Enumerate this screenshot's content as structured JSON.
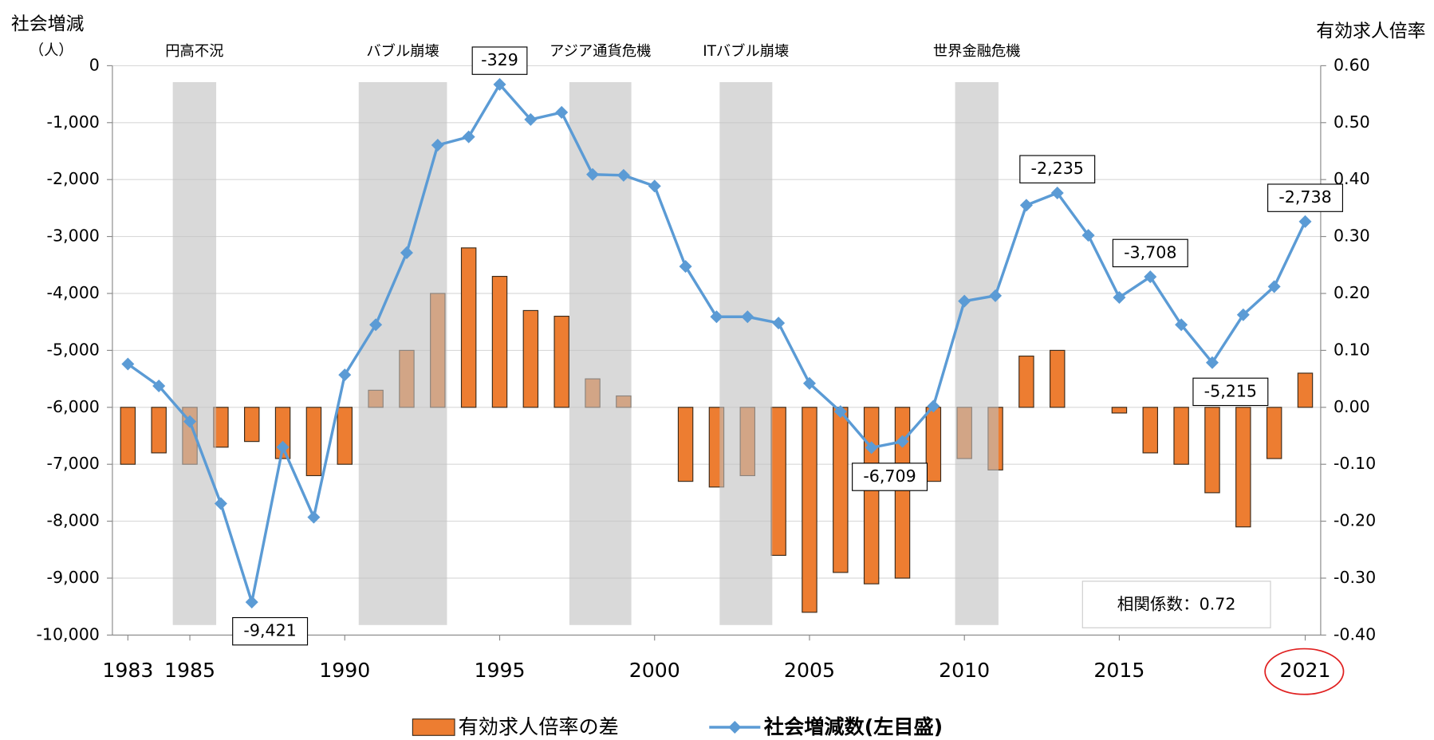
{
  "chart_data": {
    "type": "combo",
    "y_label": "社会増減",
    "y_unit": "（人）",
    "y2_label": "有効求人倍率",
    "x": [
      1983,
      1984,
      1985,
      1986,
      1987,
      1988,
      1989,
      1990,
      1991,
      1992,
      1993,
      1994,
      1995,
      1996,
      1997,
      1998,
      1999,
      2000,
      2001,
      2002,
      2003,
      2004,
      2005,
      2006,
      2007,
      2008,
      2009,
      2010,
      2011,
      2012,
      2013,
      2014,
      2015,
      2016,
      2017,
      2018,
      2019,
      2020,
      2021
    ],
    "xlim": [
      1982.5,
      2021.5
    ],
    "xticks": [
      1983,
      1985,
      1990,
      1995,
      2000,
      2005,
      2010,
      2015,
      2021
    ],
    "ylim": [
      -10000,
      0
    ],
    "yticks": [
      0,
      {
        "value": -1000,
        "label": "-1,000"
      },
      {
        "value": -2000,
        "label": "-2,000"
      },
      {
        "value": -3000,
        "label": "-3,000"
      },
      {
        "value": -4000,
        "label": "-4,000"
      },
      {
        "value": -5000,
        "label": "-5,000"
      },
      {
        "value": -6000,
        "label": "-6,000"
      },
      {
        "value": -7000,
        "label": "-7,000"
      },
      {
        "value": -8000,
        "label": "-8,000"
      },
      {
        "value": -9000,
        "label": "-9,000"
      },
      {
        "value": -10000,
        "label": "-10,000"
      }
    ],
    "y2lim": [
      -0.4,
      0.6
    ],
    "y2ticks": [
      {
        "value": 0.6,
        "label": "0.60"
      },
      {
        "value": 0.5,
        "label": "0.50"
      },
      {
        "value": 0.4,
        "label": "0.40"
      },
      {
        "value": 0.3,
        "label": "0.30"
      },
      {
        "value": 0.2,
        "label": "0.20"
      },
      {
        "value": 0.1,
        "label": "0.10"
      },
      {
        "value": 0,
        "label": "0.00"
      },
      {
        "value": -0.1,
        "label": "-0.10"
      },
      {
        "value": -0.2,
        "label": "-0.20"
      },
      {
        "value": -0.3,
        "label": "-0.30"
      },
      {
        "value": -0.4,
        "label": "-0.40"
      }
    ],
    "grid": true,
    "series": [
      {
        "name": "有効求人倍率の差",
        "type": "bar",
        "axis": "y2",
        "color": "#ed7d31",
        "values": [
          -0.1,
          -0.08,
          -0.1,
          -0.07,
          -0.06,
          -0.09,
          -0.12,
          -0.1,
          0.03,
          0.1,
          0.2,
          0.28,
          0.23,
          0.17,
          0.16,
          0.05,
          0.02,
          0,
          -0.13,
          -0.14,
          -0.12,
          -0.26,
          -0.36,
          -0.29,
          -0.31,
          -0.3,
          -0.13,
          -0.09,
          -0.11,
          0.09,
          0.1,
          0,
          -0.01,
          -0.08,
          -0.1,
          -0.15,
          -0.21,
          -0.09,
          0.06
        ]
      },
      {
        "name": "社会増減数(左目盛)",
        "type": "line",
        "axis": "y",
        "color": "#5b9bd5",
        "values": [
          -5240,
          -5625,
          -6250,
          -7690,
          -9421,
          -6700,
          -7930,
          -5430,
          -4550,
          -3285,
          -1395,
          -1250,
          -329,
          -945,
          -820,
          -1910,
          -1925,
          -2115,
          -3525,
          -4410,
          -4410,
          -4520,
          -5580,
          -6075,
          -6709,
          -6600,
          -5980,
          -4135,
          -4040,
          -2450,
          -2235,
          -2980,
          -4070,
          -3708,
          -4550,
          -5215,
          -4375,
          -3880,
          -2738
        ],
        "value_labels": [
          null,
          null,
          null,
          null,
          "-9,421",
          null,
          null,
          null,
          null,
          null,
          null,
          null,
          "-329",
          null,
          null,
          null,
          null,
          null,
          null,
          null,
          null,
          null,
          null,
          null,
          "-6,709",
          null,
          null,
          null,
          null,
          null,
          "-2,235",
          null,
          null,
          "-3,708",
          null,
          "-5,215",
          null,
          null,
          "-2,738"
        ]
      }
    ],
    "periods": [
      {
        "label": "円高不況",
        "start": 1984.45,
        "end": 1985.85
      },
      {
        "label": "バブル崩壊",
        "start": 1990.45,
        "end": 1993.3
      },
      {
        "label": "アジア通貨危機",
        "start": 1997.25,
        "end": 1999.25
      },
      {
        "label": "ITバブル崩壊",
        "start": 2002.1,
        "end": 2003.8
      },
      {
        "label": "世界金融危機",
        "start": 2009.7,
        "end": 2011.1
      }
    ],
    "annotation": "相関係数：0.72"
  }
}
